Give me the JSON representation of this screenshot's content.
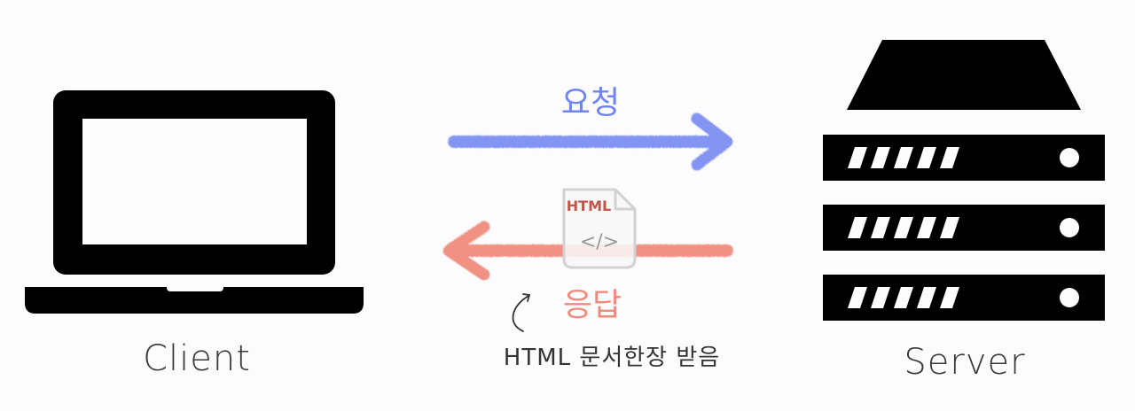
{
  "client": {
    "label": "Client",
    "icon": "laptop-icon"
  },
  "server": {
    "label": "Server",
    "icon": "server-rack-icon",
    "units": 3
  },
  "request": {
    "label": "요청",
    "color": "#6f83f2",
    "direction": "client-to-server"
  },
  "response": {
    "label": "응답",
    "color": "#ee7f70",
    "direction": "server-to-client",
    "document_badge": "HTML",
    "document_code": "</>",
    "note": "HTML 문서한장 받음"
  },
  "colors": {
    "background": "#fcfcfc",
    "icon": "#000000",
    "html_badge": "#c0564a",
    "note_text": "#333333"
  }
}
